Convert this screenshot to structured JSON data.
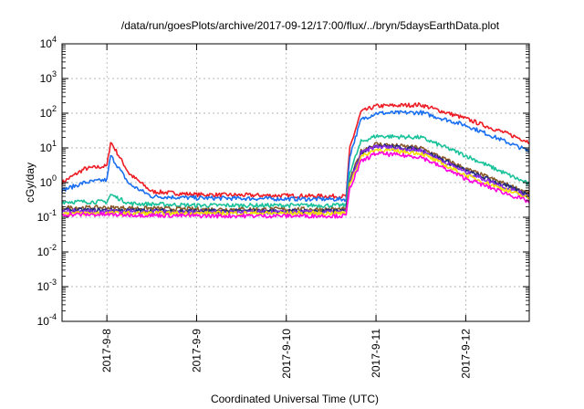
{
  "chart_data": {
    "type": "line",
    "title": "/data/run/goesPlots/archive/2017-09-12/17:00/flux/../bryn/5daysEarthData.plot",
    "xlabel": "Coordinated Universal Time (UTC)",
    "ylabel": "cGy/day",
    "yscale": "log",
    "ylim": [
      0.0001,
      10000
    ],
    "y_ticks": [
      {
        "value": 0.0001,
        "base": "10",
        "exp": "-4"
      },
      {
        "value": 0.001,
        "base": "10",
        "exp": "-3"
      },
      {
        "value": 0.01,
        "base": "10",
        "exp": "-2"
      },
      {
        "value": 0.1,
        "base": "10",
        "exp": "-1"
      },
      {
        "value": 1,
        "base": "10",
        "exp": "0"
      },
      {
        "value": 10,
        "base": "10",
        "exp": "1"
      },
      {
        "value": 100,
        "base": "10",
        "exp": "2"
      },
      {
        "value": 1000,
        "base": "10",
        "exp": "3"
      },
      {
        "value": 10000,
        "base": "10",
        "exp": "4"
      }
    ],
    "xlim": [
      "2017-09-07 12:00",
      "2017-09-12 17:00"
    ],
    "x_ticks": [
      "2017-9-8",
      "2017-9-9",
      "2017-9-10",
      "2017-9-11",
      "2017-9-12"
    ],
    "grid": true,
    "legend": "none",
    "series": [
      {
        "color": "#ee1c24",
        "x": [
          "2017-09-07 12:00",
          "2017-09-07 18:00",
          "2017-09-08 00:00",
          "2017-09-08 01:00",
          "2017-09-08 06:00",
          "2017-09-08 12:00",
          "2017-09-09 00:00",
          "2017-09-10 00:00",
          "2017-09-10 16:00",
          "2017-09-10 17:00",
          "2017-09-10 20:00",
          "2017-09-11 00:00",
          "2017-09-11 12:00",
          "2017-09-12 00:00",
          "2017-09-12 17:00"
        ],
        "values": [
          1.0,
          2.5,
          3.0,
          15.0,
          1.8,
          0.55,
          0.45,
          0.42,
          0.4,
          10.0,
          110,
          160,
          175,
          70,
          15
        ]
      },
      {
        "color": "#1a6ff0",
        "x": [
          "2017-09-07 12:00",
          "2017-09-07 18:00",
          "2017-09-08 00:00",
          "2017-09-08 01:00",
          "2017-09-08 06:00",
          "2017-09-08 12:00",
          "2017-09-09 00:00",
          "2017-09-10 00:00",
          "2017-09-10 16:00",
          "2017-09-10 17:00",
          "2017-09-10 20:00",
          "2017-09-11 00:00",
          "2017-09-11 12:00",
          "2017-09-12 00:00",
          "2017-09-12 17:00"
        ],
        "values": [
          0.6,
          1.0,
          1.2,
          6.0,
          0.9,
          0.4,
          0.36,
          0.34,
          0.33,
          6.0,
          65,
          100,
          105,
          45,
          8
        ]
      },
      {
        "color": "#19c29a",
        "x": [
          "2017-09-07 12:00",
          "2017-09-08 00:00",
          "2017-09-08 01:00",
          "2017-09-08 06:00",
          "2017-09-09 00:00",
          "2017-09-10 00:00",
          "2017-09-10 16:00",
          "2017-09-10 17:00",
          "2017-09-10 20:00",
          "2017-09-11 00:00",
          "2017-09-11 12:00",
          "2017-09-12 00:00",
          "2017-09-12 17:00"
        ],
        "values": [
          0.28,
          0.28,
          0.45,
          0.25,
          0.22,
          0.22,
          0.22,
          2.0,
          15,
          22,
          20,
          6,
          0.9
        ]
      },
      {
        "color": "#8b5a2b",
        "x": [
          "2017-09-07 12:00",
          "2017-09-08 00:00",
          "2017-09-09 00:00",
          "2017-09-10 00:00",
          "2017-09-10 16:00",
          "2017-09-10 17:00",
          "2017-09-10 20:00",
          "2017-09-11 00:00",
          "2017-09-11 12:00",
          "2017-09-12 00:00",
          "2017-09-12 17:00"
        ],
        "values": [
          0.19,
          0.19,
          0.17,
          0.17,
          0.17,
          1.2,
          8,
          13,
          10,
          2.5,
          0.5
        ]
      },
      {
        "color": "#1f2a7a",
        "x": [
          "2017-09-07 12:00",
          "2017-09-08 00:00",
          "2017-09-09 00:00",
          "2017-09-10 00:00",
          "2017-09-10 16:00",
          "2017-09-10 17:00",
          "2017-09-10 20:00",
          "2017-09-11 00:00",
          "2017-09-11 12:00",
          "2017-09-12 00:00",
          "2017-09-12 17:00"
        ],
        "values": [
          0.16,
          0.16,
          0.15,
          0.15,
          0.15,
          1.1,
          7.5,
          12,
          9,
          2.2,
          0.45
        ]
      },
      {
        "color": "#8a2be2",
        "x": [
          "2017-09-07 12:00",
          "2017-09-08 00:00",
          "2017-09-09 00:00",
          "2017-09-10 00:00",
          "2017-09-10 16:00",
          "2017-09-10 17:00",
          "2017-09-10 20:00",
          "2017-09-11 00:00",
          "2017-09-11 12:00",
          "2017-09-12 00:00",
          "2017-09-12 17:00"
        ],
        "values": [
          0.15,
          0.15,
          0.14,
          0.14,
          0.14,
          1.0,
          7,
          11,
          8.5,
          2.0,
          0.4
        ]
      },
      {
        "color": "#f2e200",
        "x": [
          "2017-09-07 12:00",
          "2017-09-08 00:00",
          "2017-09-09 00:00",
          "2017-09-10 00:00",
          "2017-09-10 16:00",
          "2017-09-10 17:00",
          "2017-09-10 20:00",
          "2017-09-11 00:00",
          "2017-09-11 12:00",
          "2017-09-12 00:00",
          "2017-09-12 17:00"
        ],
        "values": [
          0.13,
          0.13,
          0.13,
          0.13,
          0.13,
          0.9,
          5.5,
          9,
          7,
          1.6,
          0.35
        ]
      },
      {
        "color": "#ff00e0",
        "x": [
          "2017-09-07 12:00",
          "2017-09-08 00:00",
          "2017-09-09 00:00",
          "2017-09-10 00:00",
          "2017-09-10 16:00",
          "2017-09-10 17:00",
          "2017-09-10 20:00",
          "2017-09-11 00:00",
          "2017-09-11 12:00",
          "2017-09-12 00:00",
          "2017-09-12 17:00"
        ],
        "values": [
          0.12,
          0.12,
          0.11,
          0.11,
          0.11,
          0.7,
          4,
          7,
          5.5,
          1.3,
          0.28
        ]
      }
    ]
  }
}
